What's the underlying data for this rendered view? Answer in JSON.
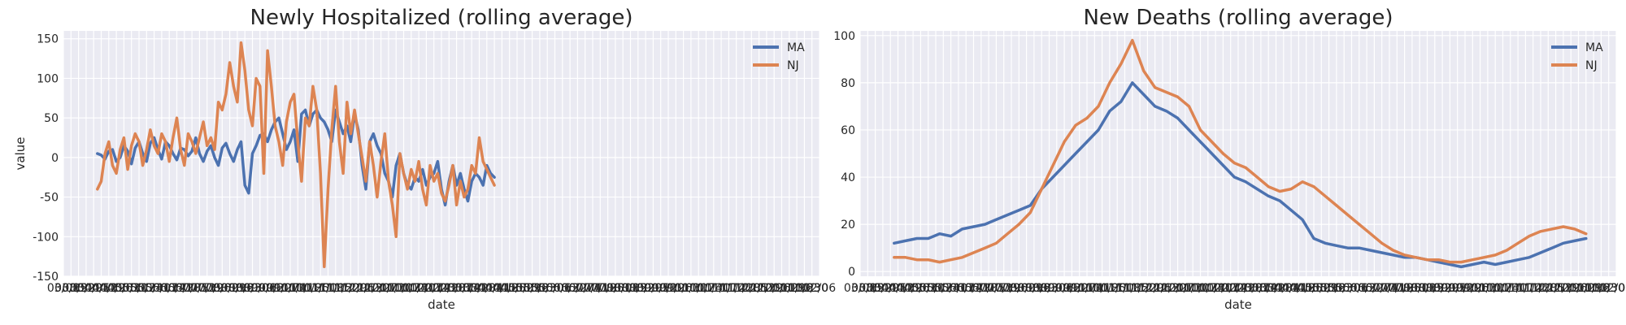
{
  "colors": {
    "MA": "#4c72b0",
    "NJ": "#dd8452",
    "background": "#eaeaf2",
    "grid": "#ffffff"
  },
  "chart_data": [
    {
      "type": "line",
      "title": "Newly Hospitalized (rolling average)",
      "xlabel": "date",
      "ylabel": "value",
      "ylim": [
        -150,
        160
      ],
      "yticks": [
        150,
        100,
        50,
        0,
        -50,
        -100,
        -150
      ],
      "xtick_labels": [
        "03/08",
        "03/15",
        "03/22",
        "03/29",
        "04/05",
        "04/12",
        "04/19",
        "04/26",
        "05/03",
        "05/10",
        "05/17",
        "05/24",
        "05/31",
        "06/07",
        "06/14",
        "06/21",
        "06/28",
        "07/05",
        "07/12",
        "07/19",
        "07/26",
        "08/02",
        "08/09",
        "08/16",
        "08/23",
        "08/30",
        "09/06",
        "09/13",
        "09/20",
        "09/27",
        "10/04",
        "10/11",
        "10/18",
        "10/25",
        "11/01",
        "11/08",
        "11/15",
        "11/22",
        "11/29",
        "12/06",
        "12/13",
        "12/20",
        "12/27",
        "01/03",
        "01/10",
        "01/17",
        "01/24",
        "01/31",
        "02/07",
        "02/14",
        "02/21",
        "02/28",
        "03/07",
        "03/14",
        "03/21",
        "03/28",
        "04/04",
        "04/11",
        "04/18",
        "04/25",
        "05/02",
        "05/09",
        "05/16",
        "05/23",
        "05/30",
        "06/06",
        "06/13",
        "06/20",
        "06/27",
        "07/04",
        "07/11",
        "07/18",
        "07/25",
        "08/01",
        "08/08",
        "08/15",
        "08/22",
        "08/29",
        "09/05",
        "09/12",
        "09/19",
        "09/26",
        "10/03",
        "10/10",
        "10/17",
        "10/24",
        "10/31",
        "11/07",
        "11/14",
        "11/21",
        "11/28",
        "12/05",
        "12/12",
        "12/19",
        "12/26",
        "01/02",
        "01/09",
        "01/16",
        "01/23",
        "01/30",
        "02/06"
      ],
      "x_domain": [
        0,
        100
      ],
      "grid": true,
      "legend": "upper right",
      "series": [
        {
          "name": "MA",
          "color": "#4c72b0",
          "x": [
            4.5,
            5,
            5.5,
            6,
            6.5,
            7,
            7.5,
            8,
            8.5,
            9,
            9.5,
            10,
            10.5,
            11,
            11.5,
            12,
            12.5,
            13,
            13.5,
            14,
            14.5,
            15,
            15.5,
            16,
            16.5,
            17,
            17.5,
            18,
            18.5,
            19,
            19.5,
            20,
            20.5,
            21,
            21.5,
            22,
            22.5,
            23,
            23.5,
            24,
            24.5,
            25,
            25.5,
            26,
            26.5,
            27,
            27.5,
            28,
            28.5,
            29,
            29.5,
            30,
            30.5,
            31,
            31.5,
            32,
            32.5,
            33,
            33.5,
            34,
            34.5,
            35,
            35.5,
            36,
            36.5,
            37,
            37.5,
            38,
            38.5,
            39,
            39.5,
            40,
            40.5,
            41,
            41.5,
            42,
            42.5,
            43,
            43.5,
            44,
            44.5,
            45,
            45.5,
            46,
            46.5,
            47,
            47.5,
            48,
            48.5,
            49,
            49.5,
            50,
            50.5,
            51,
            51.5,
            52,
            52.5,
            53,
            53.5,
            54,
            54.5,
            55,
            55.5,
            56,
            56.5,
            57
          ],
          "y": [
            5,
            3,
            -2,
            8,
            10,
            -5,
            0,
            15,
            8,
            -8,
            12,
            20,
            5,
            -5,
            18,
            25,
            10,
            -2,
            20,
            15,
            5,
            -3,
            12,
            10,
            2,
            8,
            25,
            5,
            -5,
            8,
            15,
            0,
            -10,
            12,
            18,
            5,
            -5,
            10,
            20,
            -35,
            -45,
            5,
            15,
            28,
            30,
            20,
            35,
            45,
            50,
            30,
            10,
            20,
            35,
            -5,
            55,
            60,
            40,
            55,
            60,
            50,
            45,
            35,
            20,
            60,
            45,
            30,
            40,
            20,
            55,
            35,
            -10,
            -40,
            20,
            30,
            15,
            5,
            -20,
            -30,
            -50,
            -10,
            5,
            -20,
            -35,
            -40,
            -25,
            -30,
            -15,
            -35,
            -25,
            -20,
            -5,
            -40,
            -60,
            -30,
            -10,
            -35,
            -20,
            -40,
            -55,
            -30,
            -20,
            -25,
            -35,
            -10,
            -20,
            -25
          ]
        },
        {
          "name": "NJ",
          "color": "#dd8452",
          "x": [
            4.5,
            5,
            5.5,
            6,
            6.5,
            7,
            7.5,
            8,
            8.5,
            9,
            9.5,
            10,
            10.5,
            11,
            11.5,
            12,
            12.5,
            13,
            13.5,
            14,
            14.5,
            15,
            15.5,
            16,
            16.5,
            17,
            17.5,
            18,
            18.5,
            19,
            19.5,
            20,
            20.5,
            21,
            21.5,
            22,
            22.5,
            23,
            23.5,
            24,
            24.5,
            25,
            25.5,
            26,
            26.5,
            27,
            27.5,
            28,
            28.5,
            29,
            29.5,
            30,
            30.5,
            31,
            31.5,
            32,
            32.5,
            33,
            33.5,
            34,
            34.5,
            35,
            35.5,
            36,
            36.5,
            37,
            37.5,
            38,
            38.5,
            39,
            39.5,
            40,
            40.5,
            41,
            41.5,
            42,
            42.5,
            43,
            43.5,
            44,
            44.5,
            45,
            45.5,
            46,
            46.5,
            47,
            47.5,
            48,
            48.5,
            49,
            49.5,
            50,
            50.5,
            51,
            51.5,
            52,
            52.5,
            53,
            53.5,
            54,
            54.5,
            55,
            55.5,
            56,
            56.5,
            57
          ],
          "y": [
            -40,
            -30,
            5,
            20,
            -10,
            -20,
            10,
            25,
            -15,
            15,
            30,
            20,
            -10,
            10,
            35,
            15,
            5,
            30,
            20,
            -5,
            25,
            50,
            10,
            -10,
            30,
            20,
            5,
            25,
            45,
            15,
            25,
            10,
            70,
            60,
            80,
            120,
            90,
            70,
            145,
            110,
            60,
            40,
            100,
            90,
            -20,
            135,
            90,
            40,
            20,
            -10,
            45,
            70,
            80,
            20,
            -30,
            50,
            40,
            90,
            60,
            -20,
            -138,
            -40,
            35,
            90,
            20,
            -20,
            70,
            30,
            60,
            30,
            0,
            -30,
            20,
            -10,
            -50,
            -5,
            30,
            -30,
            -60,
            -100,
            5,
            -20,
            -40,
            -15,
            -30,
            -5,
            -40,
            -60,
            -10,
            -30,
            -20,
            -45,
            -55,
            -35,
            -10,
            -60,
            -30,
            -50,
            -40,
            -10,
            -20,
            25,
            -5,
            -15,
            -25,
            -35
          ]
        }
      ]
    },
    {
      "type": "line",
      "title": "New Deaths (rolling average)",
      "xlabel": "date",
      "ylabel": "",
      "ylim": [
        -2,
        102
      ],
      "yticks": [
        100,
        80,
        60,
        40,
        20,
        0
      ],
      "xtick_labels": [
        "03/08",
        "03/15",
        "03/22",
        "03/29",
        "04/05",
        "04/12",
        "04/19",
        "04/26",
        "05/03",
        "05/10",
        "05/17",
        "05/24",
        "05/31",
        "06/07",
        "06/14",
        "06/21",
        "06/28",
        "07/05",
        "07/12",
        "07/19",
        "07/26",
        "08/02",
        "08/09",
        "08/16",
        "08/23",
        "08/30",
        "09/06",
        "09/13",
        "09/20",
        "09/27",
        "10/04",
        "10/11",
        "10/18",
        "10/25",
        "11/01",
        "11/08",
        "11/15",
        "11/22",
        "11/29",
        "12/06",
        "12/13",
        "12/20",
        "12/27",
        "01/03",
        "01/10",
        "01/17",
        "01/24",
        "01/31",
        "02/07",
        "02/14",
        "02/21",
        "02/28",
        "03/07",
        "03/14",
        "03/21",
        "03/28",
        "04/04",
        "04/11",
        "04/18",
        "04/25",
        "05/02",
        "05/09",
        "05/16",
        "05/23",
        "05/30",
        "06/06",
        "06/13",
        "06/20",
        "06/27",
        "07/04",
        "07/11",
        "07/18",
        "07/25",
        "08/01",
        "08/08",
        "08/15",
        "08/22",
        "08/29",
        "09/05",
        "09/12",
        "09/19",
        "09/26",
        "10/03",
        "10/10",
        "10/17",
        "10/24",
        "10/31",
        "11/07",
        "11/14",
        "11/21",
        "11/28",
        "12/05",
        "12/12",
        "12/19",
        "12/26",
        "01/02",
        "01/09",
        "01/16",
        "01/23",
        "01/30",
        "02/06"
      ],
      "x_domain": [
        0,
        100
      ],
      "grid": true,
      "legend": "upper right",
      "series": [
        {
          "name": "MA",
          "color": "#4c72b0",
          "x": [
            4.5,
            6,
            7.5,
            9,
            10.5,
            12,
            13.5,
            15,
            16.5,
            18,
            19.5,
            21,
            22.5,
            24,
            25.5,
            27,
            28.5,
            30,
            31.5,
            33,
            34.5,
            36,
            37.5,
            39,
            40.5,
            42,
            43.5,
            45,
            46.5,
            48,
            49.5,
            51,
            52.5,
            54,
            55.5,
            57,
            58.5,
            60,
            61.5,
            63,
            64.5,
            66,
            67.5,
            69,
            70.5,
            72,
            73.5,
            75,
            76.5,
            78,
            79.5,
            81,
            82.5,
            84,
            85.5,
            87,
            88.5,
            90,
            91.5,
            93,
            94.5,
            96
          ],
          "y": [
            12,
            13,
            14,
            14,
            16,
            15,
            18,
            19,
            20,
            22,
            24,
            26,
            28,
            35,
            40,
            45,
            50,
            55,
            60,
            68,
            72,
            80,
            75,
            70,
            68,
            65,
            60,
            55,
            50,
            45,
            40,
            38,
            35,
            32,
            30,
            26,
            22,
            14,
            12,
            11,
            10,
            10,
            9,
            8,
            7,
            6,
            6,
            5,
            4,
            3,
            2,
            3,
            4,
            3,
            4,
            5,
            6,
            8,
            10,
            12,
            13,
            14
          ]
        },
        {
          "name": "NJ",
          "color": "#dd8452",
          "x": [
            4.5,
            6,
            7.5,
            9,
            10.5,
            12,
            13.5,
            15,
            16.5,
            18,
            19.5,
            21,
            22.5,
            24,
            25.5,
            27,
            28.5,
            30,
            31.5,
            33,
            34.5,
            36,
            37.5,
            39,
            40.5,
            42,
            43.5,
            45,
            46.5,
            48,
            49.5,
            51,
            52.5,
            54,
            55.5,
            57,
            58.5,
            60,
            61.5,
            63,
            64.5,
            66,
            67.5,
            69,
            70.5,
            72,
            73.5,
            75,
            76.5,
            78,
            79.5,
            81,
            82.5,
            84,
            85.5,
            87,
            88.5,
            90,
            91.5,
            93,
            94.5,
            96
          ],
          "y": [
            6,
            6,
            5,
            5,
            4,
            5,
            6,
            8,
            10,
            12,
            16,
            20,
            25,
            35,
            45,
            55,
            62,
            65,
            70,
            80,
            88,
            98,
            85,
            78,
            76,
            74,
            70,
            60,
            55,
            50,
            46,
            44,
            40,
            36,
            34,
            35,
            38,
            36,
            32,
            28,
            24,
            20,
            16,
            12,
            9,
            7,
            6,
            5,
            5,
            4,
            4,
            5,
            6,
            7,
            9,
            12,
            15,
            17,
            18,
            19,
            18,
            16
          ]
        }
      ]
    }
  ]
}
